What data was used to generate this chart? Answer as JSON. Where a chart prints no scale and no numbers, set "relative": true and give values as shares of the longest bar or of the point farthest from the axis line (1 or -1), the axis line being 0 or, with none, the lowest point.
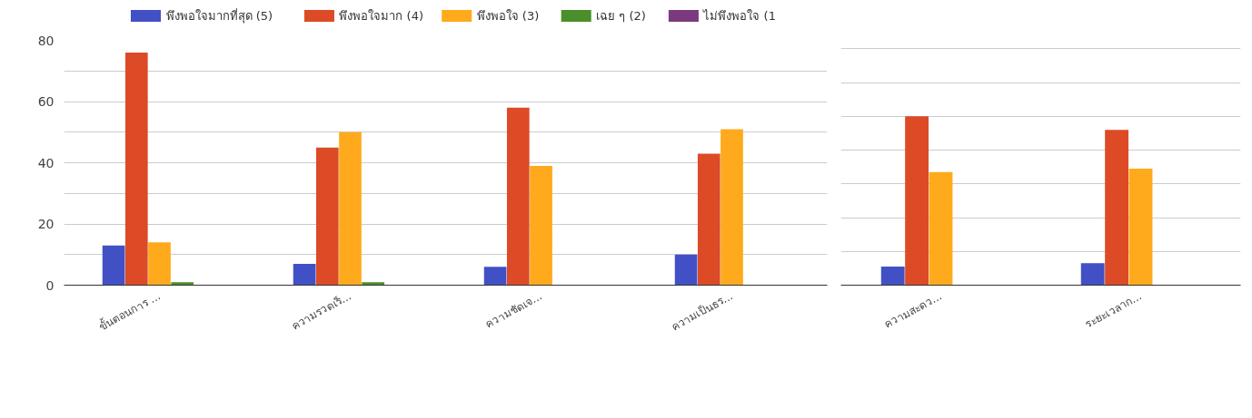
{
  "chart_data": [
    {
      "type": "bar",
      "categories": [
        "ขั้นตอนการ ...",
        "ความรวดเร็...",
        "ความชัดเจ...",
        "ความเป็นธร..."
      ],
      "series": [
        {
          "name": "พึงพอใจมากที่สุด (5)",
          "color": "#4250c6",
          "values": [
            13,
            7,
            6,
            10
          ]
        },
        {
          "name": "พึงพอใจมาก (4)",
          "color": "#dc4a26",
          "values": [
            76,
            45,
            58,
            43
          ]
        },
        {
          "name": "พึงพอใจ (3)",
          "color": "#ffaa1c",
          "values": [
            14,
            50,
            39,
            51
          ]
        },
        {
          "name": "เฉย ๆ (2)",
          "color": "#4a8f2a",
          "values": [
            1,
            1,
            0,
            0
          ]
        },
        {
          "name": "ไม่พึงพอใจ (1",
          "color": "#7b3a7d",
          "values": [
            0,
            0,
            0,
            0
          ]
        }
      ],
      "ylim": [
        0,
        80
      ],
      "yticks": [
        0,
        {
          "value": 10,
          "label": null
        },
        20,
        {
          "value": 30,
          "label": null
        },
        40,
        {
          "value": 50,
          "label": null
        },
        60,
        {
          "value": 70,
          "label": null
        },
        80
      ],
      "grid": "y",
      "legend": "top"
    },
    {
      "type": "bar",
      "categories": [
        "ความสะดว...",
        "ระยะเวลาก..."
      ],
      "relative": true,
      "series": [
        {
          "color": "#4250c6",
          "values": [
            0.11,
            0.13
          ]
        },
        {
          "color": "#dc4a26",
          "values": [
            1,
            0.92
          ]
        },
        {
          "color": "#ffaa1c",
          "values": [
            0.67,
            0.69
          ]
        },
        {
          "color": "#4a8f2a",
          "values": [
            0,
            0
          ]
        },
        {
          "color": "#7b3a7d",
          "values": [
            0,
            0
          ]
        }
      ],
      "grid": "y"
    }
  ]
}
